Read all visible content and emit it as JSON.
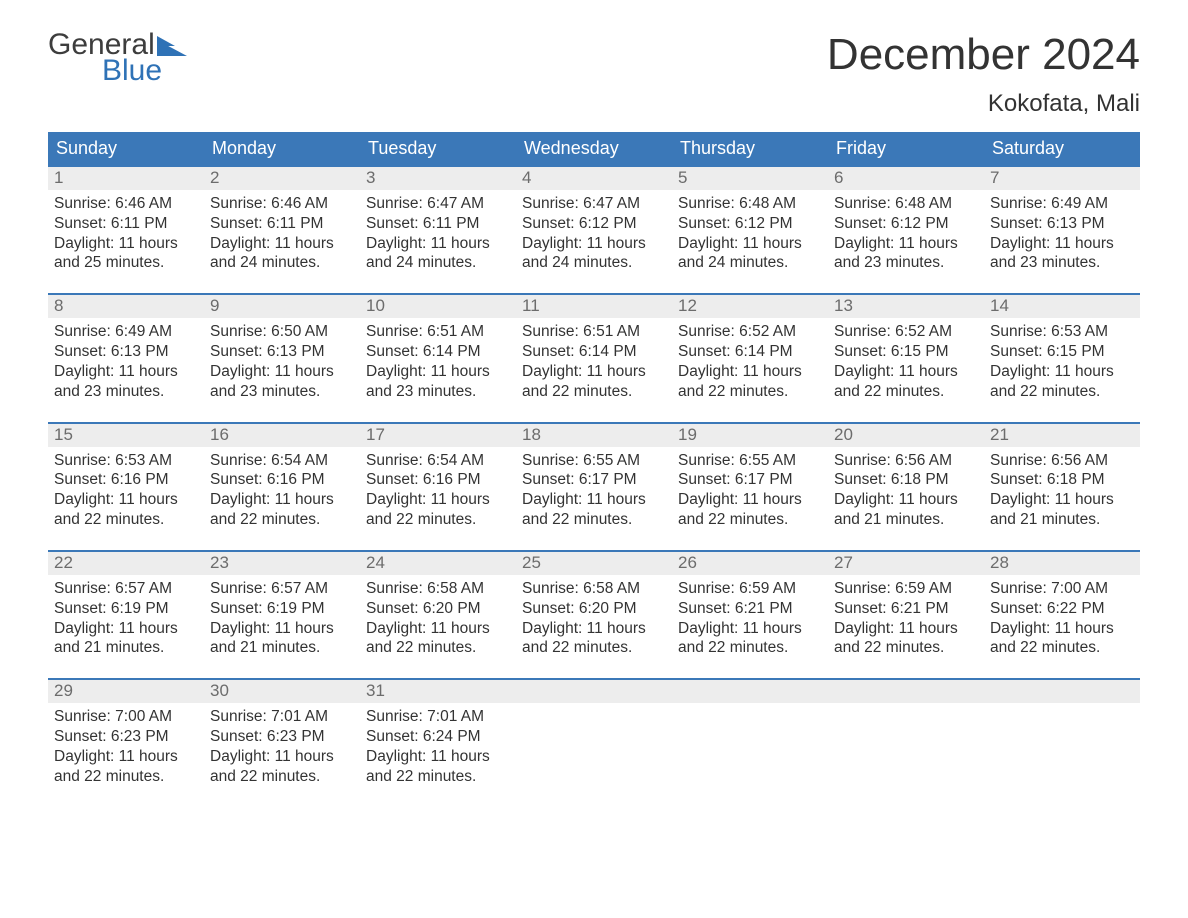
{
  "logo": {
    "line1": "General",
    "line2": "Blue",
    "flag_color": "#2f72b6"
  },
  "title": "December 2024",
  "location": "Kokofata, Mali",
  "colors": {
    "header_bg": "#3b78b8",
    "header_text": "#ffffff",
    "daynum_bg": "#ededed",
    "daynum_text": "#6c6c6c",
    "body_text": "#333333",
    "week_border": "#3b78b8",
    "page_bg": "#ffffff"
  },
  "fonts": {
    "title_size_pt": 33,
    "location_size_pt": 18,
    "header_size_pt": 14,
    "body_size_pt": 12
  },
  "day_labels": [
    "Sunday",
    "Monday",
    "Tuesday",
    "Wednesday",
    "Thursday",
    "Friday",
    "Saturday"
  ],
  "weeks": [
    [
      {
        "n": "1",
        "sunrise": "6:46 AM",
        "sunset": "6:11 PM",
        "daylight": "11 hours and 25 minutes."
      },
      {
        "n": "2",
        "sunrise": "6:46 AM",
        "sunset": "6:11 PM",
        "daylight": "11 hours and 24 minutes."
      },
      {
        "n": "3",
        "sunrise": "6:47 AM",
        "sunset": "6:11 PM",
        "daylight": "11 hours and 24 minutes."
      },
      {
        "n": "4",
        "sunrise": "6:47 AM",
        "sunset": "6:12 PM",
        "daylight": "11 hours and 24 minutes."
      },
      {
        "n": "5",
        "sunrise": "6:48 AM",
        "sunset": "6:12 PM",
        "daylight": "11 hours and 24 minutes."
      },
      {
        "n": "6",
        "sunrise": "6:48 AM",
        "sunset": "6:12 PM",
        "daylight": "11 hours and 23 minutes."
      },
      {
        "n": "7",
        "sunrise": "6:49 AM",
        "sunset": "6:13 PM",
        "daylight": "11 hours and 23 minutes."
      }
    ],
    [
      {
        "n": "8",
        "sunrise": "6:49 AM",
        "sunset": "6:13 PM",
        "daylight": "11 hours and 23 minutes."
      },
      {
        "n": "9",
        "sunrise": "6:50 AM",
        "sunset": "6:13 PM",
        "daylight": "11 hours and 23 minutes."
      },
      {
        "n": "10",
        "sunrise": "6:51 AM",
        "sunset": "6:14 PM",
        "daylight": "11 hours and 23 minutes."
      },
      {
        "n": "11",
        "sunrise": "6:51 AM",
        "sunset": "6:14 PM",
        "daylight": "11 hours and 22 minutes."
      },
      {
        "n": "12",
        "sunrise": "6:52 AM",
        "sunset": "6:14 PM",
        "daylight": "11 hours and 22 minutes."
      },
      {
        "n": "13",
        "sunrise": "6:52 AM",
        "sunset": "6:15 PM",
        "daylight": "11 hours and 22 minutes."
      },
      {
        "n": "14",
        "sunrise": "6:53 AM",
        "sunset": "6:15 PM",
        "daylight": "11 hours and 22 minutes."
      }
    ],
    [
      {
        "n": "15",
        "sunrise": "6:53 AM",
        "sunset": "6:16 PM",
        "daylight": "11 hours and 22 minutes."
      },
      {
        "n": "16",
        "sunrise": "6:54 AM",
        "sunset": "6:16 PM",
        "daylight": "11 hours and 22 minutes."
      },
      {
        "n": "17",
        "sunrise": "6:54 AM",
        "sunset": "6:16 PM",
        "daylight": "11 hours and 22 minutes."
      },
      {
        "n": "18",
        "sunrise": "6:55 AM",
        "sunset": "6:17 PM",
        "daylight": "11 hours and 22 minutes."
      },
      {
        "n": "19",
        "sunrise": "6:55 AM",
        "sunset": "6:17 PM",
        "daylight": "11 hours and 22 minutes."
      },
      {
        "n": "20",
        "sunrise": "6:56 AM",
        "sunset": "6:18 PM",
        "daylight": "11 hours and 21 minutes."
      },
      {
        "n": "21",
        "sunrise": "6:56 AM",
        "sunset": "6:18 PM",
        "daylight": "11 hours and 21 minutes."
      }
    ],
    [
      {
        "n": "22",
        "sunrise": "6:57 AM",
        "sunset": "6:19 PM",
        "daylight": "11 hours and 21 minutes."
      },
      {
        "n": "23",
        "sunrise": "6:57 AM",
        "sunset": "6:19 PM",
        "daylight": "11 hours and 21 minutes."
      },
      {
        "n": "24",
        "sunrise": "6:58 AM",
        "sunset": "6:20 PM",
        "daylight": "11 hours and 22 minutes."
      },
      {
        "n": "25",
        "sunrise": "6:58 AM",
        "sunset": "6:20 PM",
        "daylight": "11 hours and 22 minutes."
      },
      {
        "n": "26",
        "sunrise": "6:59 AM",
        "sunset": "6:21 PM",
        "daylight": "11 hours and 22 minutes."
      },
      {
        "n": "27",
        "sunrise": "6:59 AM",
        "sunset": "6:21 PM",
        "daylight": "11 hours and 22 minutes."
      },
      {
        "n": "28",
        "sunrise": "7:00 AM",
        "sunset": "6:22 PM",
        "daylight": "11 hours and 22 minutes."
      }
    ],
    [
      {
        "n": "29",
        "sunrise": "7:00 AM",
        "sunset": "6:23 PM",
        "daylight": "11 hours and 22 minutes."
      },
      {
        "n": "30",
        "sunrise": "7:01 AM",
        "sunset": "6:23 PM",
        "daylight": "11 hours and 22 minutes."
      },
      {
        "n": "31",
        "sunrise": "7:01 AM",
        "sunset": "6:24 PM",
        "daylight": "11 hours and 22 minutes."
      },
      null,
      null,
      null,
      null
    ]
  ],
  "labels": {
    "sunrise_prefix": "Sunrise: ",
    "sunset_prefix": "Sunset: ",
    "daylight_prefix": "Daylight: "
  }
}
